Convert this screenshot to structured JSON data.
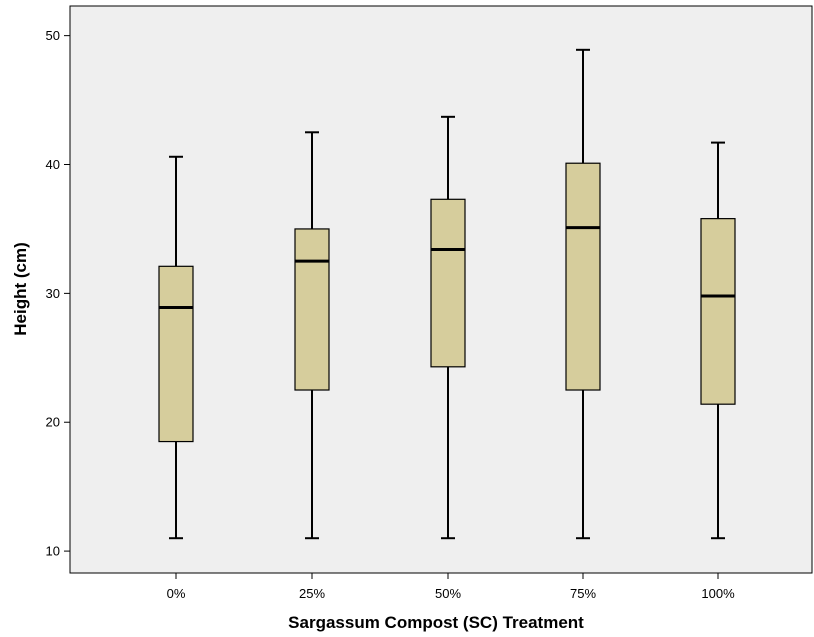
{
  "chart_data": {
    "type": "box",
    "title": "",
    "xlabel": "Sargassum Compost (SC) Treatment",
    "ylabel": "Height (cm)",
    "categories": [
      "0%",
      "25%",
      "50%",
      "75%",
      "100%"
    ],
    "boxes": [
      {
        "min": 11.0,
        "q1": 18.5,
        "median": 28.9,
        "q3": 32.1,
        "max": 40.6
      },
      {
        "min": 11.0,
        "q1": 22.5,
        "median": 32.5,
        "q3": 35.0,
        "max": 42.5
      },
      {
        "min": 11.0,
        "q1": 24.3,
        "median": 33.4,
        "q3": 37.3,
        "max": 43.7
      },
      {
        "min": 11.0,
        "q1": 22.5,
        "median": 35.1,
        "q3": 40.1,
        "max": 48.9
      },
      {
        "min": 11.0,
        "q1": 21.4,
        "median": 29.8,
        "q3": 35.8,
        "max": 41.7
      }
    ],
    "yticks": [
      10,
      20,
      30,
      40,
      50
    ],
    "ylim": [
      8.3,
      52.3
    ],
    "grid": false,
    "colors": {
      "plot_background": "#efefef",
      "box_fill": "#d6cd9c",
      "stroke": "#000000"
    }
  }
}
